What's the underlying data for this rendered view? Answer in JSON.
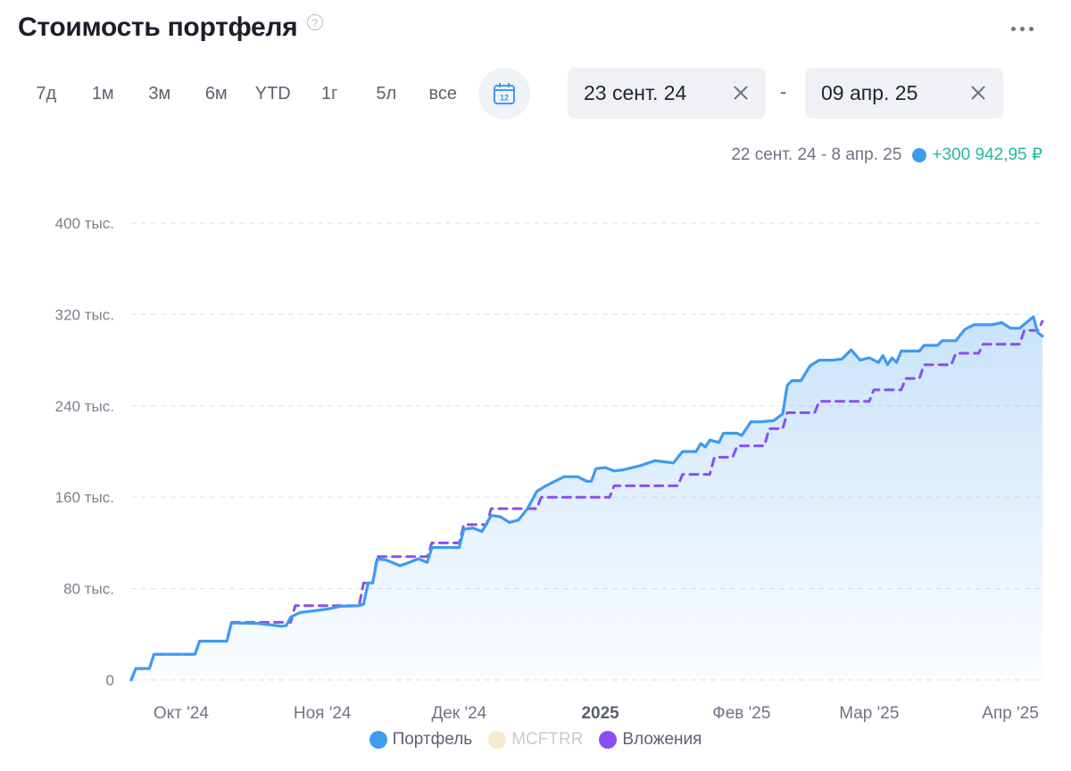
{
  "header": {
    "title": "Стоимость портфеля",
    "help_icon": "question-circle-icon",
    "more_icon": "more-horizontal-icon"
  },
  "periods": [
    {
      "label": "7д"
    },
    {
      "label": "1м"
    },
    {
      "label": "3м"
    },
    {
      "label": "6м"
    },
    {
      "label": "YTD"
    },
    {
      "label": "1г"
    },
    {
      "label": "5л"
    },
    {
      "label": "все"
    }
  ],
  "calendar_icon": {
    "name": "calendar-icon",
    "day": "12"
  },
  "date_from": {
    "value": "23 сент. 24",
    "clear_icon": "close-icon"
  },
  "date_to": {
    "value": "09 апр. 25",
    "clear_icon": "close-icon"
  },
  "date_separator": "-",
  "summary": {
    "range": "22 сент. 24 - 8 апр. 25",
    "delta": "+300 942,95 ₽",
    "delta_color": "#27b79a"
  },
  "colors": {
    "portfolio": "#3d9bf0",
    "benchmark": "#fae9d2",
    "contributions": "#8a4ff0"
  },
  "chart_data": {
    "type": "line",
    "title": "Стоимость портфеля",
    "y_unit": "₽",
    "ylim": [
      0,
      400000
    ],
    "yticks": [
      0,
      80000,
      160000,
      240000,
      320000,
      400000
    ],
    "ytick_labels": [
      "0",
      "80 тыс.",
      "160 тыс.",
      "240 тыс.",
      "320 тыс.",
      "400 тыс."
    ],
    "xlim": [
      "2024-09-22",
      "2025-04-08"
    ],
    "xticks": [
      {
        "date": "2024-10-01",
        "label": "Окт '24",
        "bold": false
      },
      {
        "date": "2024-11-01",
        "label": "Ноя '24",
        "bold": false
      },
      {
        "date": "2024-12-01",
        "label": "Дек '24",
        "bold": false
      },
      {
        "date": "2025-01-01",
        "label": "2025",
        "bold": true
      },
      {
        "date": "2025-02-01",
        "label": "Фев '25",
        "bold": false
      },
      {
        "date": "2025-03-01",
        "label": "Мар '25",
        "bold": false
      },
      {
        "date": "2025-04-01",
        "label": "Апр '25",
        "bold": false
      }
    ],
    "grid": true,
    "legend_position": "bottom",
    "series": [
      {
        "name": "Портфель",
        "style": "solid",
        "area": true,
        "points": [
          [
            "2024-09-22",
            0
          ],
          [
            "2024-09-23",
            10000
          ],
          [
            "2024-09-26",
            10000
          ],
          [
            "2024-09-27",
            22500
          ],
          [
            "2024-10-06",
            22500
          ],
          [
            "2024-10-07",
            34000
          ],
          [
            "2024-10-13",
            34000
          ],
          [
            "2024-10-14",
            50000
          ],
          [
            "2024-10-20",
            49500
          ],
          [
            "2024-10-25",
            47000
          ],
          [
            "2024-10-26",
            47500
          ],
          [
            "2024-10-27",
            55000
          ],
          [
            "2024-10-29",
            59000
          ],
          [
            "2024-11-04",
            62000
          ],
          [
            "2024-11-07",
            64500
          ],
          [
            "2024-11-11",
            65000
          ],
          [
            "2024-11-12",
            66500
          ],
          [
            "2024-11-13",
            85000
          ],
          [
            "2024-11-14",
            85000
          ],
          [
            "2024-11-15",
            106000
          ],
          [
            "2024-11-17",
            105000
          ],
          [
            "2024-11-20",
            100000
          ],
          [
            "2024-11-22",
            103000
          ],
          [
            "2024-11-24",
            106000
          ],
          [
            "2024-11-26",
            103000
          ],
          [
            "2024-11-27",
            116000
          ],
          [
            "2024-12-03",
            116000
          ],
          [
            "2024-12-04",
            132000
          ],
          [
            "2024-12-06",
            133000
          ],
          [
            "2024-12-08",
            130000
          ],
          [
            "2024-12-10",
            144000
          ],
          [
            "2024-12-12",
            143000
          ],
          [
            "2024-12-14",
            138000
          ],
          [
            "2024-12-16",
            140000
          ],
          [
            "2024-12-18",
            150000
          ],
          [
            "2024-12-20",
            165000
          ],
          [
            "2024-12-22",
            170000
          ],
          [
            "2024-12-24",
            174000
          ],
          [
            "2024-12-26",
            178000
          ],
          [
            "2024-12-29",
            178000
          ],
          [
            "2024-12-31",
            174000
          ],
          [
            "2025-01-01",
            174000
          ],
          [
            "2025-01-02",
            185000
          ],
          [
            "2025-01-04",
            186000
          ],
          [
            "2025-01-06",
            183000
          ],
          [
            "2025-01-08",
            184000
          ],
          [
            "2025-01-10",
            186000
          ],
          [
            "2025-01-12",
            188000
          ],
          [
            "2025-01-15",
            192000
          ],
          [
            "2025-01-17",
            191000
          ],
          [
            "2025-01-19",
            190000
          ],
          [
            "2025-01-21",
            200000
          ],
          [
            "2025-01-24",
            200000
          ],
          [
            "2025-01-25",
            207000
          ],
          [
            "2025-01-26",
            204000
          ],
          [
            "2025-01-27",
            210000
          ],
          [
            "2025-01-29",
            208000
          ],
          [
            "2025-01-30",
            216000
          ],
          [
            "2025-02-02",
            216000
          ],
          [
            "2025-02-03",
            214000
          ],
          [
            "2025-02-05",
            226000
          ],
          [
            "2025-02-07",
            226000
          ],
          [
            "2025-02-10",
            227000
          ],
          [
            "2025-02-12",
            233000
          ],
          [
            "2025-02-13",
            258000
          ],
          [
            "2025-02-14",
            262000
          ],
          [
            "2025-02-16",
            262000
          ],
          [
            "2025-02-18",
            275000
          ],
          [
            "2025-02-20",
            280000
          ],
          [
            "2025-02-23",
            280000
          ],
          [
            "2025-02-25",
            281000
          ],
          [
            "2025-02-27",
            289000
          ],
          [
            "2025-03-01",
            280000
          ],
          [
            "2025-03-03",
            282000
          ],
          [
            "2025-03-05",
            278000
          ],
          [
            "2025-03-06",
            284000
          ],
          [
            "2025-03-07",
            276000
          ],
          [
            "2025-03-08",
            282000
          ],
          [
            "2025-03-09",
            278000
          ],
          [
            "2025-03-10",
            288000
          ],
          [
            "2025-03-14",
            288000
          ],
          [
            "2025-03-15",
            293000
          ],
          [
            "2025-03-18",
            293000
          ],
          [
            "2025-03-19",
            297000
          ],
          [
            "2025-03-22",
            297000
          ],
          [
            "2025-03-24",
            307000
          ],
          [
            "2025-03-26",
            311000
          ],
          [
            "2025-03-30",
            311000
          ],
          [
            "2025-04-01",
            313000
          ],
          [
            "2025-04-03",
            308000
          ],
          [
            "2025-04-05",
            308000
          ],
          [
            "2025-04-08",
            318000
          ],
          [
            "2025-04-09",
            304000
          ],
          [
            "2025-04-10",
            301000
          ]
        ]
      },
      {
        "name": "MCFTRR",
        "style": "solid",
        "area": false,
        "points": []
      },
      {
        "name": "Вложения",
        "style": "dashed",
        "area": false,
        "points": [
          [
            "2024-09-22",
            0
          ],
          [
            "2024-09-23",
            10000
          ],
          [
            "2024-09-26",
            10000
          ],
          [
            "2024-09-27",
            22500
          ],
          [
            "2024-10-06",
            22500
          ],
          [
            "2024-10-07",
            34000
          ],
          [
            "2024-10-13",
            34000
          ],
          [
            "2024-10-14",
            50500
          ],
          [
            "2024-10-27",
            50500
          ],
          [
            "2024-10-28",
            65000
          ],
          [
            "2024-11-11",
            65000
          ],
          [
            "2024-11-12",
            85000
          ],
          [
            "2024-11-14",
            85000
          ],
          [
            "2024-11-15",
            108000
          ],
          [
            "2024-11-26",
            108000
          ],
          [
            "2024-11-27",
            120000
          ],
          [
            "2024-12-03",
            120000
          ],
          [
            "2024-12-04",
            136000
          ],
          [
            "2024-12-09",
            136000
          ],
          [
            "2024-12-10",
            150000
          ],
          [
            "2024-12-20",
            150000
          ],
          [
            "2024-12-21",
            160000
          ],
          [
            "2025-01-05",
            160000
          ],
          [
            "2025-01-06",
            170000
          ],
          [
            "2025-01-20",
            170000
          ],
          [
            "2025-01-21",
            180000
          ],
          [
            "2025-01-27",
            180000
          ],
          [
            "2025-01-28",
            195000
          ],
          [
            "2025-02-01",
            195000
          ],
          [
            "2025-02-02",
            205000
          ],
          [
            "2025-02-08",
            205000
          ],
          [
            "2025-02-09",
            220000
          ],
          [
            "2025-02-12",
            220000
          ],
          [
            "2025-02-13",
            234000
          ],
          [
            "2025-02-19",
            234000
          ],
          [
            "2025-02-20",
            244000
          ],
          [
            "2025-03-03",
            244000
          ],
          [
            "2025-03-04",
            254000
          ],
          [
            "2025-03-10",
            254000
          ],
          [
            "2025-03-11",
            264000
          ],
          [
            "2025-03-14",
            264000
          ],
          [
            "2025-03-15",
            276000
          ],
          [
            "2025-03-21",
            276000
          ],
          [
            "2025-03-22",
            286000
          ],
          [
            "2025-03-27",
            286000
          ],
          [
            "2025-03-28",
            294000
          ],
          [
            "2025-04-05",
            294000
          ],
          [
            "2025-04-06",
            306000
          ],
          [
            "2025-04-09",
            306000
          ],
          [
            "2025-04-10",
            314000
          ]
        ]
      }
    ]
  }
}
